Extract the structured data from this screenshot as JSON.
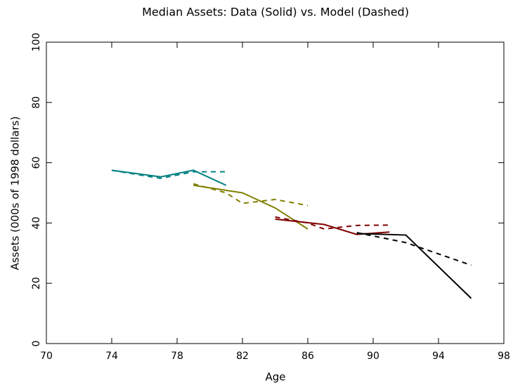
{
  "chart_data": {
    "type": "line",
    "title": "Median Assets:  Data (Solid) vs. Model (Dashed)",
    "xlabel": "Age",
    "ylabel": "Assets (000s of 1998 dollars)",
    "xlim": [
      70,
      98
    ],
    "xticks": [
      70,
      74,
      78,
      82,
      86,
      90,
      94,
      98
    ],
    "ylim": [
      0,
      100
    ],
    "yticks": [
      0,
      20,
      40,
      60,
      80,
      100
    ],
    "series": [
      {
        "color": "#008080",
        "dashed": false,
        "x": [
          74,
          77,
          79,
          81
        ],
        "values": [
          57.5,
          55.3,
          57.5,
          52.5
        ]
      },
      {
        "color": "#008080",
        "dashed": true,
        "x": [
          74,
          77,
          79,
          81
        ],
        "values": [
          57.5,
          54.8,
          57,
          57
        ]
      },
      {
        "color": "#808000",
        "dashed": false,
        "x": [
          79,
          82,
          84,
          86
        ],
        "values": [
          52.5,
          50,
          45,
          38
        ]
      },
      {
        "color": "#808000",
        "dashed": true,
        "x": [
          79,
          81,
          82,
          84,
          86
        ],
        "values": [
          53,
          50,
          46.5,
          47.8,
          45.8
        ]
      },
      {
        "color": "#800000",
        "dashed": false,
        "x": [
          84,
          87,
          89,
          91
        ],
        "values": [
          41.3,
          39.5,
          36.2,
          37
        ]
      },
      {
        "color": "#800000",
        "dashed": true,
        "x": [
          84,
          86,
          87,
          89,
          91
        ],
        "values": [
          42,
          40,
          38,
          39.2,
          39.3
        ]
      },
      {
        "color": "#000000",
        "dashed": false,
        "x": [
          89,
          92,
          96
        ],
        "values": [
          36.5,
          36,
          15
        ]
      },
      {
        "color": "#000000",
        "dashed": true,
        "x": [
          89,
          92,
          96
        ],
        "values": [
          36.8,
          33.5,
          26
        ]
      }
    ]
  }
}
